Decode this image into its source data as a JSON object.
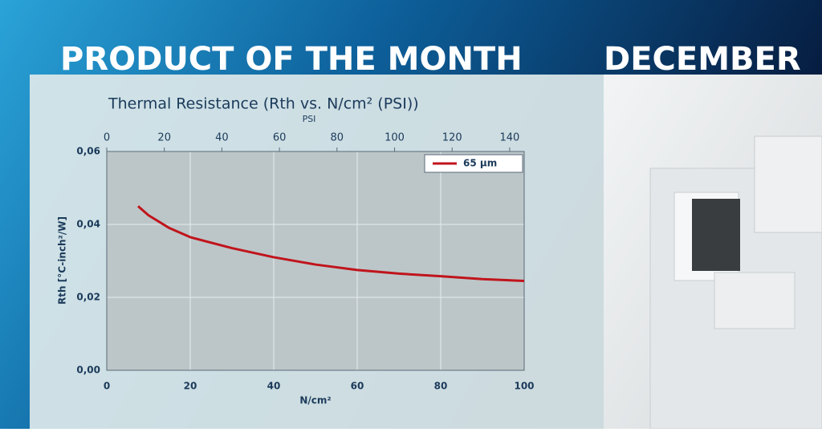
{
  "header": {
    "title": "PRODUCT OF THE MONTH",
    "month": "DECEMBER"
  },
  "chart_data": {
    "type": "line",
    "title": "Thermal Resistance (Rth vs. N/cm² (PSI))",
    "x_label": "N/cm²",
    "x2_label": "PSI",
    "y_label": "Rth [°C-inch²/W]",
    "x": [
      7.5,
      10,
      15,
      20,
      30,
      40,
      50,
      60,
      70,
      80,
      90,
      100
    ],
    "series": [
      {
        "name": "65 µm",
        "color": "#c0141c",
        "values": [
          0.045,
          0.0425,
          0.039,
          0.0365,
          0.0335,
          0.031,
          0.029,
          0.0275,
          0.0265,
          0.0258,
          0.025,
          0.0245
        ]
      }
    ],
    "xlim": [
      0,
      100
    ],
    "xticks": [
      0,
      20,
      40,
      60,
      80,
      100
    ],
    "x2lim": [
      0,
      145.04
    ],
    "x2ticks": [
      0,
      20,
      40,
      60,
      80,
      100,
      120,
      140
    ],
    "ylim": [
      0,
      0.06
    ],
    "yticks": [
      {
        "value": 0,
        "label": "0,00"
      },
      {
        "value": 0.02,
        "label": "0,02"
      },
      {
        "value": 0.04,
        "label": "0,04"
      },
      {
        "value": 0.06,
        "label": "0,06"
      }
    ],
    "grid": true,
    "legend": "upper right"
  }
}
